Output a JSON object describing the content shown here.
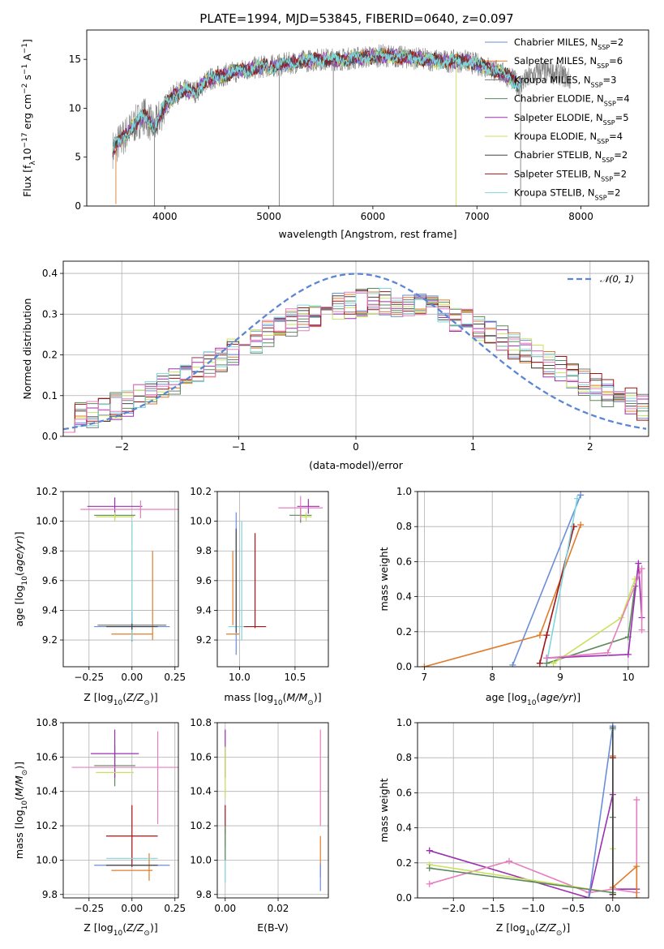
{
  "colors": {
    "Chabrier MILES": "#6a8fd8",
    "Salpeter MILES": "#e07b2a",
    "Kroupa MILES": "#7a7a7a",
    "Chabrier ELODIE": "#5c8a5c",
    "Salpeter ELODIE": "#9b30b0",
    "Kroupa ELODIE": "#c9e25a",
    "Chabrier STELIB": "#444444",
    "Salpeter STELIB": "#a01515",
    "Kroupa STELIB": "#7fd6dc",
    "pink": "#e67fbf",
    "gauss": "#5b86d4"
  },
  "chart_data": [
    {
      "id": "spectrum",
      "type": "line",
      "title": "PLATE=1994, MJD=53845, FIBERID=0640, z=0.097",
      "xlabel": "wavelength [Angstrom, rest frame]",
      "ylabel": "Flux [f_λ10^-17 erg cm^-2 s^-1 A^-1]",
      "xlim": [
        3250,
        8650
      ],
      "ylim": [
        0,
        18
      ],
      "xticks": [
        4000,
        5000,
        6000,
        7000,
        8000
      ],
      "yticks": [
        0,
        5,
        10,
        15
      ],
      "legend_position": "top-right",
      "legend": [
        {
          "label": "Chabrier MILES, N",
          "sub": "SSP",
          "suffix": "=2"
        },
        {
          "label": "Salpeter MILES, N",
          "sub": "SSP",
          "suffix": "=6"
        },
        {
          "label": "Kroupa MILES, N",
          "sub": "SSP",
          "suffix": "=3"
        },
        {
          "label": "Chabrier ELODIE, N",
          "sub": "SSP",
          "suffix": "=4"
        },
        {
          "label": "Salpeter ELODIE, N",
          "sub": "SSP",
          "suffix": "=5"
        },
        {
          "label": "Kroupa ELODIE, N",
          "sub": "SSP",
          "suffix": "=4"
        },
        {
          "label": "Chabrier STELIB, N",
          "sub": "SSP",
          "suffix": "=2"
        },
        {
          "label": "Salpeter STELIB, N",
          "sub": "SSP",
          "suffix": "=2"
        },
        {
          "label": "Kroupa STELIB, N",
          "sub": "SSP",
          "suffix": "=2"
        }
      ],
      "continuum": [
        [
          3500,
          5.8
        ],
        [
          3600,
          7.0
        ],
        [
          3700,
          8.2
        ],
        [
          3800,
          9.3
        ],
        [
          3900,
          8.0
        ],
        [
          4000,
          10.2
        ],
        [
          4100,
          11.5
        ],
        [
          4200,
          11.8
        ],
        [
          4300,
          11.7
        ],
        [
          4400,
          12.8
        ],
        [
          4500,
          13.2
        ],
        [
          4700,
          13.8
        ],
        [
          4900,
          14.2
        ],
        [
          5100,
          14.4
        ],
        [
          5300,
          14.8
        ],
        [
          5500,
          15.0
        ],
        [
          5700,
          15.0
        ],
        [
          5900,
          15.2
        ],
        [
          6100,
          15.4
        ],
        [
          6300,
          15.2
        ],
        [
          6500,
          15.0
        ],
        [
          6700,
          14.8
        ],
        [
          6900,
          14.8
        ],
        [
          7100,
          14.2
        ],
        [
          7300,
          13.3
        ],
        [
          7400,
          12.4
        ],
        [
          7600,
          13.8
        ],
        [
          7800,
          13.5
        ],
        [
          7900,
          12.9
        ]
      ],
      "model_extent": [
        3500,
        7420
      ],
      "data_extent": [
        3500,
        7900
      ],
      "dips": [
        {
          "x": 3530,
          "y": 0.2
        },
        {
          "x": 3900,
          "y": 0
        },
        {
          "x": 5100,
          "y": 0
        },
        {
          "x": 5620,
          "y": 0
        },
        {
          "x": 6800,
          "y": 0
        },
        {
          "x": 7420,
          "y": 0
        }
      ]
    },
    {
      "id": "residuals",
      "type": "step",
      "xlabel": "(data-model)/error",
      "ylabel": "Normed distribution",
      "xlim": [
        -2.5,
        2.5
      ],
      "ylim": [
        0,
        0.43
      ],
      "xticks": [
        -2,
        -1,
        0,
        1,
        2
      ],
      "yticks": [
        0.0,
        0.1,
        0.2,
        0.3,
        0.4
      ],
      "bin_width": 0.1,
      "legend_position": "top-right",
      "legend": [
        "𝒩(0, 1)"
      ],
      "gaussian": {
        "mu": 0,
        "sigma": 1,
        "amplitude": 0.399
      },
      "envelope": {
        "center": 0.2,
        "sigma": 1.3,
        "amplitude": 0.33
      }
    },
    {
      "id": "age-vs-Z",
      "type": "errorbar",
      "xlabel": "Z [log10(Z/Z⊙)]",
      "ylabel": "age [log10(age/yr)]",
      "xlim": [
        -0.4,
        0.27
      ],
      "ylim": [
        9.02,
        10.2
      ],
      "xticks": [
        -0.25,
        0,
        0.25
      ],
      "xtick_labels": [
        "−0.25",
        "0.00",
        "0.25"
      ],
      "yticks": [
        9.2,
        9.4,
        9.6,
        9.8,
        10.0,
        10.2
      ],
      "points": [
        {
          "s": "Chabrier MILES",
          "x": 0.0,
          "y": 9.29,
          "xe": 0.22,
          "ye": 0.1
        },
        {
          "s": "Salpeter MILES",
          "x": 0.0,
          "y": 9.24,
          "xe": 0.12,
          "ye": 0.03
        },
        {
          "s": "Salpeter MILES",
          "x": 0.12,
          "y": 9.5,
          "xe": 0.0,
          "ye": 0.3
        },
        {
          "s": "Kroupa MILES",
          "x": 0.0,
          "y": 9.3,
          "xe": 0.2,
          "ye": 0.05
        },
        {
          "s": "Chabrier ELODIE",
          "x": -0.1,
          "y": 10.04,
          "xe": 0.12,
          "ye": 0.03
        },
        {
          "s": "Salpeter ELODIE",
          "x": -0.1,
          "y": 10.1,
          "xe": 0.16,
          "ye": 0.06
        },
        {
          "s": "Kroupa ELODIE",
          "x": -0.1,
          "y": 10.03,
          "xe": 0.11,
          "ye": 0.03
        },
        {
          "s": "pink",
          "x": 0.05,
          "y": 10.08,
          "xe": 0.35,
          "ye": 0.06
        },
        {
          "s": "Kroupa STELIB",
          "x": 0.0,
          "y": 9.6,
          "xe": 0.0,
          "ye": 0.4
        },
        {
          "s": "Chabrier STELIB",
          "x": 0.0,
          "y": 9.29,
          "xe": 0.15,
          "ye": 0.02
        }
      ]
    },
    {
      "id": "age-vs-mass",
      "type": "errorbar",
      "xlabel": "mass [log10(M/M⊙)]",
      "xlim": [
        9.8,
        10.8
      ],
      "ylim": [
        9.02,
        10.2
      ],
      "xticks": [
        10.0,
        10.5
      ],
      "yticks": [
        9.2,
        9.4,
        9.6,
        9.8,
        10.0,
        10.2
      ],
      "points": [
        {
          "s": "Chabrier MILES",
          "x": 9.97,
          "y": 9.58,
          "xe": 0.0,
          "ye": 0.48
        },
        {
          "s": "Salpeter MILES",
          "x": 9.94,
          "y": 9.24,
          "xe": 0.06,
          "ye": 0.0
        },
        {
          "s": "Salpeter MILES",
          "x": 9.94,
          "y": 9.55,
          "xe": 0.0,
          "ye": 0.25
        },
        {
          "s": "Kroupa STELIB",
          "x": 10.0,
          "y": 9.29,
          "xe": 0.1,
          "ye": 0.0
        },
        {
          "s": "Chabrier STELIB",
          "x": 9.97,
          "y": 9.6,
          "xe": 0.0,
          "ye": 0.35
        },
        {
          "s": "Salpeter STELIB",
          "x": 10.14,
          "y": 9.29,
          "xe": 0.1,
          "ye": 0.0
        },
        {
          "s": "Salpeter STELIB",
          "x": 10.14,
          "y": 9.6,
          "xe": 0.0,
          "ye": 0.32
        },
        {
          "s": "Kroupa STELIB",
          "x": 10.02,
          "y": 9.6,
          "xe": 0.0,
          "ye": 0.4
        },
        {
          "s": "Chabrier ELODIE",
          "x": 10.55,
          "y": 10.04,
          "xe": 0.1,
          "ye": 0.05
        },
        {
          "s": "Salpeter ELODIE",
          "x": 10.62,
          "y": 10.1,
          "xe": 0.1,
          "ye": 0.05
        },
        {
          "s": "pink",
          "x": 10.55,
          "y": 10.09,
          "xe": 0.2,
          "ye": 0.08
        },
        {
          "s": "Kroupa ELODIE",
          "x": 10.6,
          "y": 10.03,
          "xe": 0.05,
          "ye": 0.03
        }
      ]
    },
    {
      "id": "massweight-vs-age",
      "type": "line",
      "xlabel": "age [log10(age/yr)]",
      "ylabel": "mass weight",
      "xlim": [
        6.9,
        10.3
      ],
      "ylim": [
        0,
        1.0
      ],
      "xticks": [
        7,
        8,
        9,
        10
      ],
      "yticks": [
        0.0,
        0.2,
        0.4,
        0.6,
        0.8,
        1.0
      ],
      "series": [
        {
          "s": "Chabrier MILES",
          "points": [
            [
              8.3,
              0.01
            ],
            [
              9.3,
              0.98
            ]
          ]
        },
        {
          "s": "Salpeter MILES",
          "points": [
            [
              7.0,
              0.0
            ],
            [
              8.7,
              0.18
            ],
            [
              9.3,
              0.81
            ]
          ]
        },
        {
          "s": "Salpeter STELIB",
          "points": [
            [
              8.7,
              0.02
            ],
            [
              8.8,
              0.18
            ],
            [
              9.2,
              0.8
            ]
          ]
        },
        {
          "s": "Kroupa STELIB",
          "points": [
            [
              8.8,
              0.02
            ],
            [
              9.25,
              0.96
            ]
          ]
        },
        {
          "s": "Chabrier ELODIE",
          "points": [
            [
              8.8,
              0.02
            ],
            [
              10.0,
              0.17
            ],
            [
              10.1,
              0.46
            ]
          ]
        },
        {
          "s": "Kroupa ELODIE",
          "points": [
            [
              8.9,
              0.02
            ],
            [
              9.9,
              0.28
            ],
            [
              10.1,
              0.5
            ]
          ]
        },
        {
          "s": "Salpeter ELODIE",
          "points": [
            [
              8.8,
              0.05
            ],
            [
              10.0,
              0.07
            ],
            [
              10.15,
              0.59
            ],
            [
              10.2,
              0.28
            ]
          ]
        },
        {
          "s": "pink",
          "points": [
            [
              8.8,
              0.05
            ],
            [
              9.7,
              0.08
            ],
            [
              10.2,
              0.56
            ],
            [
              10.2,
              0.21
            ]
          ]
        }
      ]
    },
    {
      "id": "mass-vs-Z",
      "type": "errorbar",
      "xlabel": "Z [log10(Z/Z⊙)]",
      "ylabel": "mass [log10(M/M⊙)]",
      "xlim": [
        -0.4,
        0.27
      ],
      "ylim": [
        9.78,
        10.8
      ],
      "xticks": [
        -0.25,
        0,
        0.25
      ],
      "xtick_labels": [
        "−0.25",
        "0.00",
        "0.25"
      ],
      "yticks": [
        9.8,
        10.0,
        10.2,
        10.4,
        10.6,
        10.8
      ],
      "points": [
        {
          "s": "Chabrier MILES",
          "x": 0.0,
          "y": 9.97,
          "xe": 0.22,
          "ye": 0.0
        },
        {
          "s": "Salpeter MILES",
          "x": 0.0,
          "y": 9.94,
          "xe": 0.12,
          "ye": 0.0
        },
        {
          "s": "Salpeter MILES",
          "x": 0.1,
          "y": 9.96,
          "xe": 0.0,
          "ye": 0.08
        },
        {
          "s": "Salpeter STELIB",
          "x": 0.0,
          "y": 10.14,
          "xe": 0.15,
          "ye": 0.0
        },
        {
          "s": "Salpeter STELIB",
          "x": 0.0,
          "y": 10.14,
          "xe": 0.0,
          "ye": 0.18
        },
        {
          "s": "Kroupa STELIB",
          "x": 0.0,
          "y": 10.01,
          "xe": 0.15,
          "ye": 0.0
        },
        {
          "s": "Chabrier STELIB",
          "x": 0.0,
          "y": 9.97,
          "xe": 0.15,
          "ye": 0.0
        },
        {
          "s": "Chabrier ELODIE",
          "x": -0.1,
          "y": 10.55,
          "xe": 0.12,
          "ye": 0.12
        },
        {
          "s": "Salpeter ELODIE",
          "x": -0.1,
          "y": 10.62,
          "xe": 0.14,
          "ye": 0.14
        },
        {
          "s": "Kroupa ELODIE",
          "x": -0.1,
          "y": 10.51,
          "xe": 0.11,
          "ye": 0.0
        },
        {
          "s": "pink",
          "x": 0.0,
          "y": 10.54,
          "xe": 0.35,
          "ye": 0.0
        },
        {
          "s": "pink",
          "x": 0.15,
          "y": 10.48,
          "xe": 0.0,
          "ye": 0.27
        }
      ]
    },
    {
      "id": "mass-vs-EBV",
      "type": "errorbar",
      "xlabel": "E(B-V)",
      "xlim": [
        -0.003,
        0.039
      ],
      "ylim": [
        9.78,
        10.8
      ],
      "xticks": [
        0.0,
        0.02
      ],
      "xtick_labels": [
        "0.00",
        "0.02"
      ],
      "yticks": [
        9.8,
        10.0,
        10.2,
        10.4,
        10.6,
        10.8
      ],
      "points": [
        {
          "s": "Salpeter ELODIE",
          "x": 0.0,
          "y": 10.62,
          "xe": 0.0,
          "ye": 0.14
        },
        {
          "s": "Kroupa ELODIE",
          "x": 0.0,
          "y": 10.51,
          "xe": 0.0,
          "ye": 0.15
        },
        {
          "s": "Salpeter STELIB",
          "x": 0.0,
          "y": 10.2,
          "xe": 0.0,
          "ye": 0.12
        },
        {
          "s": "Kroupa STELIB",
          "x": 0.0,
          "y": 10.01,
          "xe": 0.0,
          "ye": 0.14
        },
        {
          "s": "Chabrier ELODIE",
          "x": 0.0,
          "y": 10.1,
          "xe": 0.0,
          "ye": 0.1
        },
        {
          "s": "pink",
          "x": 0.036,
          "y": 10.48,
          "xe": 0.0,
          "ye": 0.28
        },
        {
          "s": "Salpeter MILES",
          "x": 0.036,
          "y": 10.02,
          "xe": 0.0,
          "ye": 0.12
        },
        {
          "s": "Chabrier MILES",
          "x": 0.036,
          "y": 9.9,
          "xe": 0.0,
          "ye": 0.08
        }
      ]
    },
    {
      "id": "massweight-vs-Z",
      "type": "line",
      "xlabel": "Z [log10(Z/Z⊙)]",
      "ylabel": "mass weight",
      "xlim": [
        -2.45,
        0.45
      ],
      "ylim": [
        0,
        1.0
      ],
      "xticks": [
        -2.0,
        -1.5,
        -1.0,
        -0.5,
        0.0
      ],
      "xtick_labels": [
        "−2.0",
        "−1.5",
        "−1.0",
        "−0.5",
        "0.0"
      ],
      "yticks": [
        0.0,
        0.2,
        0.4,
        0.6,
        0.8,
        1.0
      ],
      "series": [
        {
          "s": "Salpeter ELODIE",
          "points": [
            [
              -2.3,
              0.27
            ],
            [
              -0.3,
              0.0
            ],
            [
              0.0,
              0.59
            ],
            [
              0.0,
              0.05
            ],
            [
              0.3,
              0.05
            ]
          ]
        },
        {
          "s": "pink",
          "points": [
            [
              -2.3,
              0.08
            ],
            [
              -1.3,
              0.21
            ],
            [
              -0.3,
              0.03
            ],
            [
              0.0,
              0.05
            ],
            [
              0.3,
              0.03
            ],
            [
              0.3,
              0.56
            ]
          ]
        },
        {
          "s": "Kroupa ELODIE",
          "points": [
            [
              -2.3,
              0.19
            ],
            [
              0.0,
              0.03
            ],
            [
              0.0,
              0.28
            ]
          ]
        },
        {
          "s": "Chabrier ELODIE",
          "points": [
            [
              -2.3,
              0.17
            ],
            [
              0.0,
              0.03
            ],
            [
              0.0,
              0.46
            ]
          ]
        },
        {
          "s": "Chabrier MILES",
          "points": [
            [
              -0.3,
              0.0
            ],
            [
              0.0,
              0.98
            ],
            [
              0.0,
              0.02
            ]
          ]
        },
        {
          "s": "Kroupa STELIB",
          "points": [
            [
              0.0,
              0.02
            ],
            [
              0.0,
              0.96
            ]
          ]
        },
        {
          "s": "Salpeter MILES",
          "points": [
            [
              0.0,
              0.0
            ],
            [
              0.0,
              0.81
            ],
            [
              0.0,
              0.06
            ],
            [
              0.3,
              0.18
            ],
            [
              0.3,
              0.0
            ]
          ]
        },
        {
          "s": "Salpeter STELIB",
          "points": [
            [
              0.0,
              0.02
            ],
            [
              0.0,
              0.8
            ]
          ]
        },
        {
          "s": "Chabrier STELIB",
          "points": [
            [
              0.0,
              0.02
            ],
            [
              0.0,
              0.97
            ]
          ]
        }
      ]
    }
  ]
}
